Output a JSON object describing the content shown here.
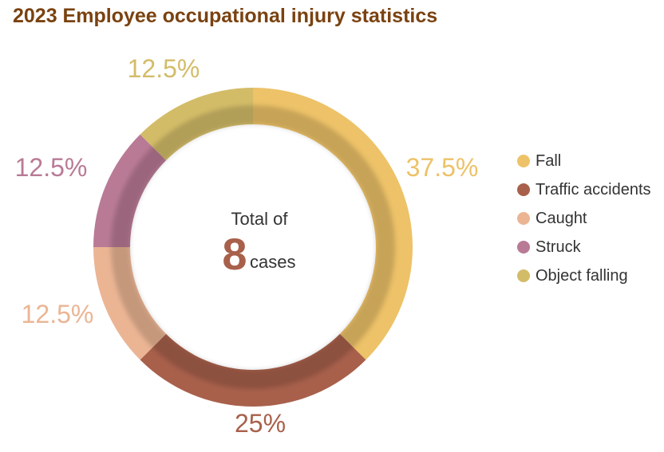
{
  "chart_data": {
    "type": "pie",
    "variant": "donut",
    "title": "2023 Employee occupational injury statistics",
    "center": {
      "prefix": "Total of",
      "value": "8",
      "unit": "cases"
    },
    "categories": [
      "Fall",
      "Traffic accidents",
      "Caught",
      "Struck",
      "Object falling"
    ],
    "values": [
      37.5,
      25,
      12.5,
      12.5,
      12.5
    ],
    "labels": [
      "37.5%",
      "25%",
      "12.5%",
      "12.5%",
      "12.5%"
    ],
    "colors": [
      "#edc268",
      "#a8604b",
      "#ebb594",
      "#b97a95",
      "#d3bc68"
    ],
    "start_angle": "12 o'clock",
    "direction": "clockwise",
    "legend_position": "right"
  }
}
